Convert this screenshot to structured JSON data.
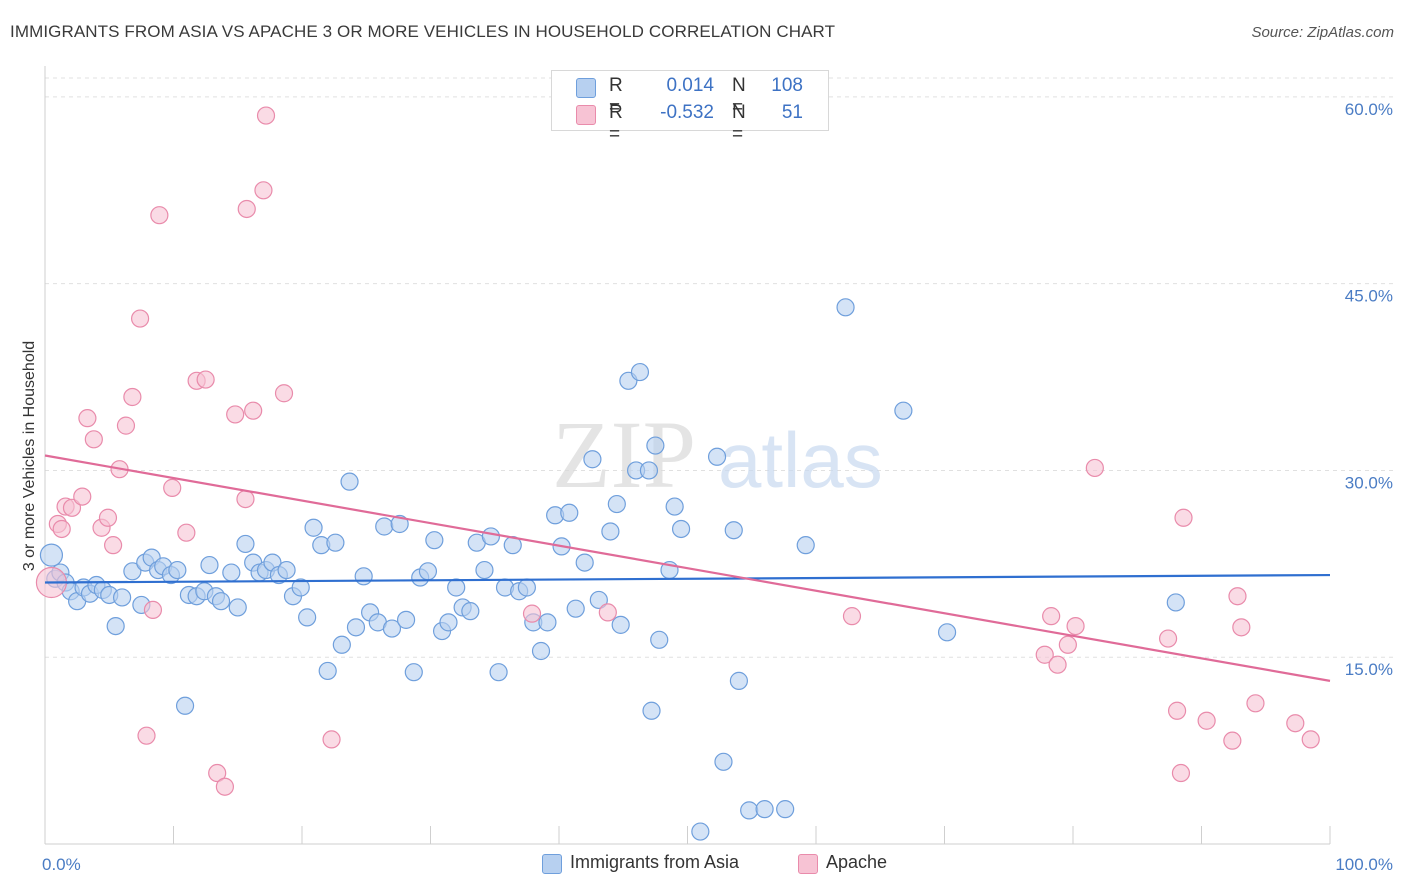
{
  "title": "IMMIGRANTS FROM ASIA VS APACHE 3 OR MORE VEHICLES IN HOUSEHOLD CORRELATION CHART",
  "source": "Source: ZipAtlas.com",
  "watermark": {
    "zip": "ZIP",
    "atlas": "atlas"
  },
  "colors": {
    "blue_fill": "#b7d0f0",
    "blue_stroke": "#6f9fdc",
    "blue_line": "#2f6fd0",
    "pink_fill": "#f7c3d4",
    "pink_stroke": "#e98bab",
    "pink_line": "#e06b98",
    "tick_text": "#4a7cc4",
    "grid": "#e0e0e0"
  },
  "legend": {
    "rows": [
      {
        "r_label": "R =",
        "r_value": "0.014",
        "n_label": "N =",
        "n_value": "108"
      },
      {
        "r_label": "R =",
        "r_value": "-0.532",
        "n_label": "N =",
        "n_value": "51"
      }
    ]
  },
  "bottom_legend": [
    "Immigrants from Asia",
    "Apache"
  ],
  "chart_data": {
    "type": "scatter",
    "xlabel": "",
    "ylabel": "3 or more Vehicles in Household",
    "xlim": [
      0,
      100
    ],
    "ylim": [
      0,
      62
    ],
    "x_ticks": [
      {
        "v": 0,
        "label": "0.0%"
      },
      {
        "v": 100,
        "label": "100.0%"
      }
    ],
    "y_ticks": [
      {
        "v": 15,
        "label": "15.0%"
      },
      {
        "v": 30,
        "label": "30.0%"
      },
      {
        "v": 45,
        "label": "45.0%"
      },
      {
        "v": 60,
        "label": "60.0%"
      }
    ],
    "grid": "horizontal dashed",
    "legend_position": "top-center",
    "series": [
      {
        "name": "Immigrants from Asia",
        "trend": {
          "x0": 0,
          "y0": 21.0,
          "x1": 100,
          "y1": 21.6
        },
        "points": [
          [
            0.5,
            23.2
          ],
          [
            0.8,
            21.3
          ],
          [
            1.2,
            21.8
          ],
          [
            1.6,
            21.0
          ],
          [
            2.0,
            20.3
          ],
          [
            2.5,
            19.5
          ],
          [
            3.0,
            20.6
          ],
          [
            3.5,
            20.1
          ],
          [
            4.0,
            20.8
          ],
          [
            4.5,
            20.4
          ],
          [
            5.0,
            20.0
          ],
          [
            5.5,
            17.5
          ],
          [
            6.0,
            19.8
          ],
          [
            6.8,
            21.9
          ],
          [
            7.5,
            19.2
          ],
          [
            7.8,
            22.6
          ],
          [
            8.3,
            23.0
          ],
          [
            8.8,
            22.0
          ],
          [
            9.2,
            22.3
          ],
          [
            9.8,
            21.6
          ],
          [
            10.3,
            22.0
          ],
          [
            10.9,
            11.1
          ],
          [
            11.2,
            20.0
          ],
          [
            11.8,
            19.9
          ],
          [
            12.4,
            20.3
          ],
          [
            12.8,
            22.4
          ],
          [
            13.3,
            19.9
          ],
          [
            13.7,
            19.5
          ],
          [
            14.5,
            21.8
          ],
          [
            15.0,
            19.0
          ],
          [
            15.6,
            24.1
          ],
          [
            16.2,
            22.6
          ],
          [
            16.7,
            21.8
          ],
          [
            17.2,
            22.0
          ],
          [
            17.7,
            22.6
          ],
          [
            18.2,
            21.6
          ],
          [
            18.8,
            22.0
          ],
          [
            19.3,
            19.9
          ],
          [
            19.9,
            20.6
          ],
          [
            20.4,
            18.2
          ],
          [
            20.9,
            25.4
          ],
          [
            21.5,
            24.0
          ],
          [
            22.0,
            13.9
          ],
          [
            22.6,
            24.2
          ],
          [
            23.1,
            16.0
          ],
          [
            23.7,
            29.1
          ],
          [
            24.2,
            17.4
          ],
          [
            24.8,
            21.5
          ],
          [
            25.3,
            18.6
          ],
          [
            25.9,
            17.8
          ],
          [
            26.4,
            25.5
          ],
          [
            27.0,
            17.3
          ],
          [
            27.6,
            25.7
          ],
          [
            28.1,
            18.0
          ],
          [
            28.7,
            13.8
          ],
          [
            29.2,
            21.4
          ],
          [
            29.8,
            21.9
          ],
          [
            30.3,
            24.4
          ],
          [
            30.9,
            17.1
          ],
          [
            31.4,
            17.8
          ],
          [
            32.0,
            20.6
          ],
          [
            32.5,
            19.0
          ],
          [
            33.1,
            18.7
          ],
          [
            33.6,
            24.2
          ],
          [
            34.2,
            22.0
          ],
          [
            34.7,
            24.7
          ],
          [
            35.3,
            13.8
          ],
          [
            35.8,
            20.6
          ],
          [
            36.4,
            24.0
          ],
          [
            36.9,
            20.3
          ],
          [
            37.5,
            20.6
          ],
          [
            38.0,
            17.8
          ],
          [
            38.6,
            15.5
          ],
          [
            39.1,
            17.8
          ],
          [
            39.7,
            26.4
          ],
          [
            40.2,
            23.9
          ],
          [
            40.8,
            26.6
          ],
          [
            41.3,
            18.9
          ],
          [
            42.0,
            22.6
          ],
          [
            42.6,
            30.9
          ],
          [
            43.1,
            19.6
          ],
          [
            44.0,
            25.1
          ],
          [
            44.5,
            27.3
          ],
          [
            44.8,
            17.6
          ],
          [
            45.4,
            37.2
          ],
          [
            46.0,
            30.0
          ],
          [
            46.3,
            37.9
          ],
          [
            47.0,
            30.0
          ],
          [
            47.5,
            32.0
          ],
          [
            47.8,
            16.4
          ],
          [
            47.2,
            10.7
          ],
          [
            48.6,
            22.0
          ],
          [
            49.0,
            27.1
          ],
          [
            49.5,
            25.3
          ],
          [
            51.0,
            1.0
          ],
          [
            52.3,
            31.1
          ],
          [
            52.8,
            6.6
          ],
          [
            53.6,
            25.2
          ],
          [
            54.0,
            13.1
          ],
          [
            54.8,
            2.7
          ],
          [
            56.0,
            2.8
          ],
          [
            57.6,
            2.8
          ],
          [
            59.2,
            24.0
          ],
          [
            62.3,
            43.1
          ],
          [
            66.8,
            34.8
          ],
          [
            70.2,
            17.0
          ],
          [
            88.0,
            19.4
          ]
        ]
      },
      {
        "name": "Apache",
        "trend": {
          "x0": 0,
          "y0": 31.2,
          "x1": 100,
          "y1": 13.1
        },
        "points": [
          [
            0.5,
            21.0
          ],
          [
            1.0,
            25.7
          ],
          [
            1.3,
            25.3
          ],
          [
            1.6,
            27.1
          ],
          [
            2.1,
            27.0
          ],
          [
            2.9,
            27.9
          ],
          [
            3.3,
            34.2
          ],
          [
            3.8,
            32.5
          ],
          [
            4.4,
            25.4
          ],
          [
            4.9,
            26.2
          ],
          [
            5.3,
            24.0
          ],
          [
            5.8,
            30.1
          ],
          [
            6.3,
            33.6
          ],
          [
            6.8,
            35.9
          ],
          [
            7.4,
            42.2
          ],
          [
            7.9,
            8.7
          ],
          [
            8.4,
            18.8
          ],
          [
            8.9,
            50.5
          ],
          [
            9.9,
            28.6
          ],
          [
            11.0,
            25.0
          ],
          [
            11.8,
            37.2
          ],
          [
            12.5,
            37.3
          ],
          [
            13.4,
            5.7
          ],
          [
            14.0,
            4.6
          ],
          [
            14.8,
            34.5
          ],
          [
            15.6,
            27.7
          ],
          [
            15.7,
            51.0
          ],
          [
            16.2,
            34.8
          ],
          [
            17.0,
            52.5
          ],
          [
            17.2,
            58.5
          ],
          [
            18.6,
            36.2
          ],
          [
            22.3,
            8.4
          ],
          [
            37.9,
            18.5
          ],
          [
            43.8,
            18.6
          ],
          [
            62.8,
            18.3
          ],
          [
            77.8,
            15.2
          ],
          [
            78.3,
            18.3
          ],
          [
            78.8,
            14.4
          ],
          [
            79.6,
            16.0
          ],
          [
            80.2,
            17.5
          ],
          [
            81.7,
            30.2
          ],
          [
            87.4,
            16.5
          ],
          [
            88.1,
            10.7
          ],
          [
            88.4,
            5.7
          ],
          [
            88.6,
            26.2
          ],
          [
            90.4,
            9.9
          ],
          [
            92.4,
            8.3
          ],
          [
            92.8,
            19.9
          ],
          [
            93.1,
            17.4
          ],
          [
            94.2,
            11.3
          ],
          [
            97.3,
            9.7
          ],
          [
            98.5,
            8.4
          ]
        ]
      }
    ]
  }
}
